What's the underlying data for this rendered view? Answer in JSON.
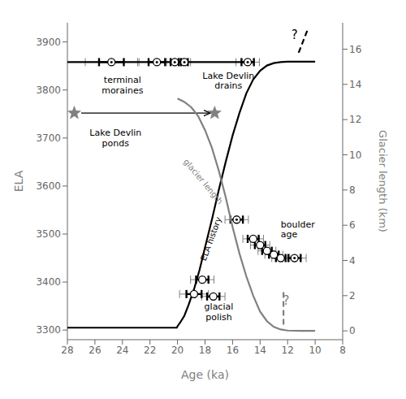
{
  "chart_data": {
    "type": "line",
    "xlabel": "Age (ka)",
    "ylabel": "ELA",
    "y2label": "Glacier length (km)",
    "xlim": [
      28,
      8
    ],
    "ylim": [
      3280,
      3940
    ],
    "y2lim": [
      -0.5,
      17.5
    ],
    "xticks": [
      28,
      26,
      24,
      22,
      20,
      18,
      16,
      14,
      12,
      10,
      8
    ],
    "yticks": [
      3300,
      3400,
      3500,
      3600,
      3700,
      3800,
      3900
    ],
    "y2ticks": [
      0,
      2,
      4,
      6,
      8,
      10,
      12,
      14,
      16
    ],
    "series": [
      {
        "type": "line",
        "color": "black",
        "x": [
          28,
          20.05,
          20.0,
          19.8,
          19.5,
          19.2,
          18.8,
          18.4,
          18.0,
          17.5,
          17.0,
          16.5,
          16.0,
          15.5,
          15.0,
          14.5,
          14.0,
          13.5,
          13.0,
          12.5,
          12.0,
          11.0,
          10.0
        ],
        "values": [
          3305,
          3305,
          3308,
          3316,
          3330,
          3352,
          3385,
          3425,
          3472,
          3530,
          3592,
          3650,
          3705,
          3752,
          3793,
          3822,
          3840,
          3851,
          3856,
          3858,
          3859,
          3859,
          3859
        ]
      },
      {
        "type": "line",
        "color": "gray",
        "axis": "y2",
        "x": [
          20.0,
          19.5,
          19.0,
          18.5,
          18.0,
          17.5,
          17.0,
          16.5,
          16.0,
          15.5,
          15.0,
          14.5,
          14.0,
          13.5,
          13.0,
          12.5,
          12.0,
          11.0,
          10.0
        ],
        "values": [
          13.2,
          13.0,
          12.7,
          12.2,
          11.4,
          10.4,
          9.1,
          7.6,
          5.9,
          4.4,
          3.1,
          2.0,
          1.1,
          0.55,
          0.22,
          0.08,
          0.02,
          0.0,
          0.0
        ]
      },
      {
        "type": "line",
        "color": "black",
        "axis": "y2",
        "line_style": "dashed",
        "x": [
          11.2,
          10.5
        ],
        "values": [
          15.8,
          17.2
        ]
      },
      {
        "type": "line",
        "color": "black",
        "x": [
          28,
          14.5
        ],
        "values": [
          3858,
          3858
        ]
      },
      {
        "type": "scatter",
        "marker": "circle",
        "x": [
          24.8,
          21.5,
          20.2,
          19.5,
          14.9
        ],
        "values": [
          3858,
          3858,
          3858,
          3858,
          3858
        ],
        "xerr_inner": [
          0.9,
          0.6,
          0.3,
          0.25,
          0.45
        ],
        "xerr_outer": [
          1.9,
          1.3,
          0.6,
          0.45,
          0.85
        ],
        "boulder": [
          true,
          true,
          true,
          true,
          true
        ]
      },
      {
        "type": "scatter",
        "marker": "circle",
        "x": [
          15.7,
          14.5,
          14.0,
          13.5,
          13.0,
          12.5,
          11.5
        ],
        "values": [
          3530,
          3490,
          3477,
          3465,
          3457,
          3450,
          3450
        ],
        "xerr_inner": [
          0.45,
          0.4,
          0.38,
          0.35,
          0.35,
          0.35,
          0.45
        ],
        "xerr_outer": [
          0.85,
          0.75,
          0.7,
          0.65,
          0.65,
          0.65,
          0.85
        ],
        "boulder": [
          true,
          false,
          false,
          false,
          false,
          false,
          true
        ]
      },
      {
        "type": "scatter",
        "marker": "circle",
        "x": [
          18.8,
          18.2,
          17.4
        ],
        "values": [
          3375,
          3405,
          3370
        ],
        "xerr_inner": [
          0.55,
          0.45,
          0.45
        ],
        "xerr_outer": [
          1.05,
          0.85,
          0.85
        ],
        "boulder": [
          false,
          false,
          false
        ]
      },
      {
        "type": "scatter",
        "marker": "star",
        "color": "gray",
        "x": [
          27.5
        ],
        "values": [
          3752
        ]
      },
      {
        "type": "scatter",
        "marker": "star",
        "color": "gray",
        "x": [
          17.3
        ],
        "values": [
          3752
        ]
      },
      {
        "type": "line",
        "color": "gray",
        "axis": "y2",
        "line_style": "dashed",
        "x": [
          12.3,
          12.3
        ],
        "values": [
          0.35,
          2.2
        ]
      }
    ],
    "arrows": [
      {
        "from": [
          27.0,
          3752
        ],
        "to": [
          17.6,
          3752
        ]
      }
    ],
    "annotations": [
      {
        "text": "terminal\nmoraines",
        "x": 24.0,
        "y": 3810
      },
      {
        "text": "Lake Devlin\nponds",
        "x": 24.5,
        "y": 3700
      },
      {
        "text": "Lake Devlin\ndrains",
        "x": 16.3,
        "y": 3820
      },
      {
        "text": "boulder\nage",
        "x": 12.5,
        "y": 3510
      },
      {
        "text": "glacial\npolish",
        "x": 17.0,
        "y": 3338
      },
      {
        "text": "ELA history",
        "x": 17.6,
        "y": 3490
      },
      {
        "text": "glacier length",
        "x": 18.1,
        "y": 3610,
        "color": "gray"
      },
      {
        "text": "?",
        "x": 11.5,
        "y": 3915
      },
      {
        "text": "?",
        "x": 12.1,
        "y": 1.7,
        "axis": "y2",
        "color": "gray"
      }
    ]
  }
}
